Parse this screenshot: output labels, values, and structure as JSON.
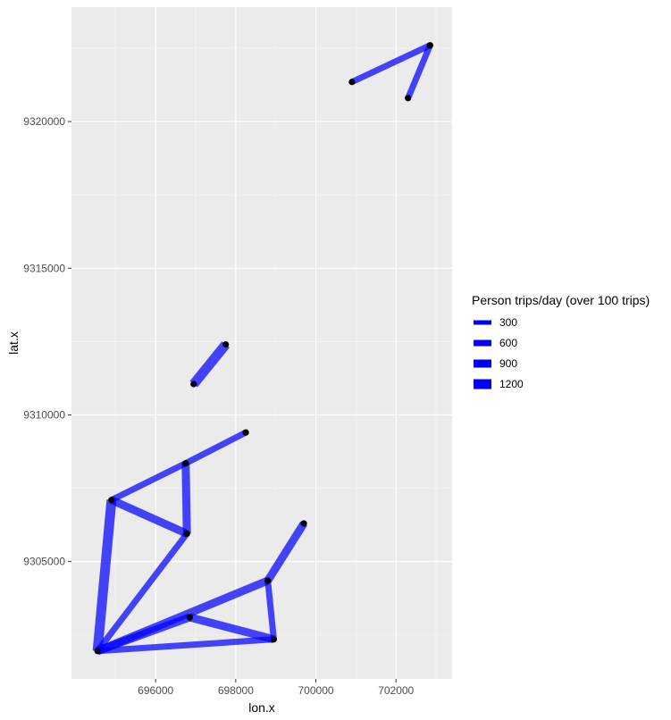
{
  "chart_data": {
    "type": "line",
    "title": "",
    "xlabel": "lon.x",
    "ylabel": "lat.x",
    "xlim": [
      693900,
      703400
    ],
    "ylim": [
      9301000,
      9323900
    ],
    "x_ticks": [
      696000,
      698000,
      700000,
      702000
    ],
    "y_ticks": [
      9305000,
      9310000,
      9315000,
      9320000
    ],
    "grid": true,
    "legend": {
      "title": "Person trips/day (over 100 trips)",
      "placement": "right",
      "entries": [
        {
          "label": "300",
          "value": 300
        },
        {
          "label": "600",
          "value": 600
        },
        {
          "label": "900",
          "value": 900
        },
        {
          "label": "1200",
          "value": 1200
        }
      ]
    },
    "colors": {
      "panel": "#ebebeb",
      "grid_major": "#ffffff",
      "segment": "#0000ff",
      "point": "#000000"
    },
    "points": [
      {
        "x": 694550,
        "y": 9301950
      },
      {
        "x": 694900,
        "y": 9307100
      },
      {
        "x": 696750,
        "y": 9308350
      },
      {
        "x": 696780,
        "y": 9305950
      },
      {
        "x": 698250,
        "y": 9309400
      },
      {
        "x": 696950,
        "y": 9311050
      },
      {
        "x": 697750,
        "y": 9312400
      },
      {
        "x": 698800,
        "y": 9304350
      },
      {
        "x": 699700,
        "y": 9306300
      },
      {
        "x": 696850,
        "y": 9303100
      },
      {
        "x": 698950,
        "y": 9302350
      },
      {
        "x": 700900,
        "y": 9321350
      },
      {
        "x": 702850,
        "y": 9322600
      },
      {
        "x": 702300,
        "y": 9320800
      }
    ],
    "segments": [
      {
        "from": [
          694550,
          9301950
        ],
        "to": [
          694900,
          9307100
        ],
        "trips": 1200
      },
      {
        "from": [
          694550,
          9301950
        ],
        "to": [
          696780,
          9305950
        ],
        "trips": 600
      },
      {
        "from": [
          694550,
          9301950
        ],
        "to": [
          698800,
          9304350
        ],
        "trips": 900
      },
      {
        "from": [
          694550,
          9301950
        ],
        "to": [
          696850,
          9303100
        ],
        "trips": 900
      },
      {
        "from": [
          694550,
          9301950
        ],
        "to": [
          698950,
          9302350
        ],
        "trips": 600
      },
      {
        "from": [
          694900,
          9307100
        ],
        "to": [
          696780,
          9305950
        ],
        "trips": 900
      },
      {
        "from": [
          694900,
          9307100
        ],
        "to": [
          696750,
          9308350
        ],
        "trips": 600
      },
      {
        "from": [
          696750,
          9308350
        ],
        "to": [
          698250,
          9309400
        ],
        "trips": 600
      },
      {
        "from": [
          696750,
          9308350
        ],
        "to": [
          696780,
          9305950
        ],
        "trips": 900
      },
      {
        "from": [
          696950,
          9311050
        ],
        "to": [
          697750,
          9312400
        ],
        "trips": 1200
      },
      {
        "from": [
          698800,
          9304350
        ],
        "to": [
          698950,
          9302350
        ],
        "trips": 600
      },
      {
        "from": [
          698800,
          9304350
        ],
        "to": [
          699700,
          9306300
        ],
        "trips": 900
      },
      {
        "from": [
          696850,
          9303100
        ],
        "to": [
          698950,
          9302350
        ],
        "trips": 900
      },
      {
        "from": [
          700900,
          9321350
        ],
        "to": [
          702850,
          9322600
        ],
        "trips": 600
      },
      {
        "from": [
          702850,
          9322600
        ],
        "to": [
          702300,
          9320800
        ],
        "trips": 600
      }
    ]
  }
}
